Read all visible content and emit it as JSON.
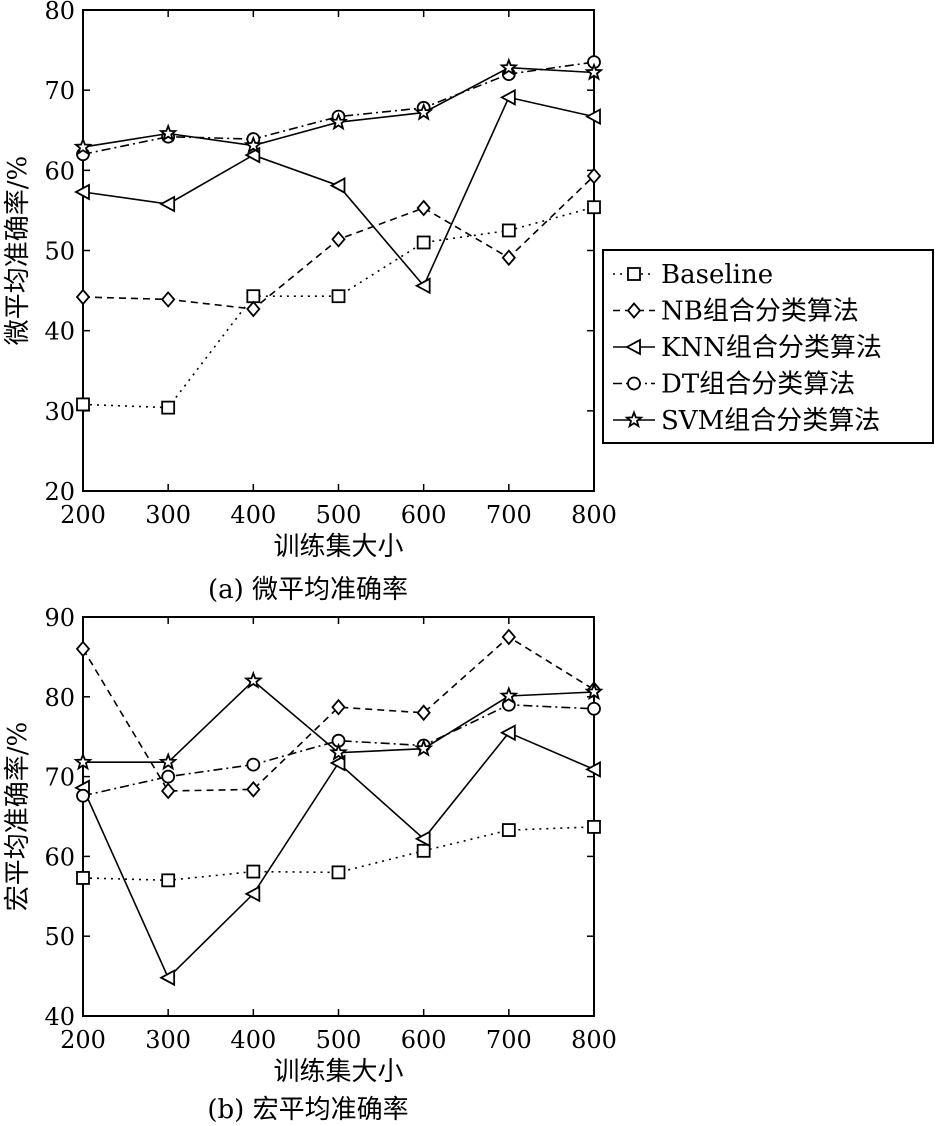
{
  "figure": {
    "legend": {
      "entries": [
        {
          "label": "Baseline",
          "marker": "square-icon",
          "dash": "dotted"
        },
        {
          "label": "NB组合分类算法",
          "marker": "diamond-icon",
          "dash": "dashed"
        },
        {
          "label": "KNN组合分类算法",
          "marker": "left-triangle-icon",
          "dash": "solid"
        },
        {
          "label": "DT组合分类算法",
          "marker": "circle-icon",
          "dash": "dashdot"
        },
        {
          "label": "SVM组合分类算法",
          "marker": "star-icon",
          "dash": "solid"
        }
      ],
      "placement": "right, between the two panels"
    },
    "line_color": "#000000",
    "background": "#ffffff"
  },
  "chart_data": [
    {
      "type": "line",
      "caption": "(a) 微平均准确率",
      "xlabel": "训练集大小",
      "ylabel": "微平均准确率/%",
      "x": [
        200,
        300,
        400,
        500,
        600,
        700,
        800
      ],
      "xlim": [
        200,
        800
      ],
      "ylim": [
        20,
        80
      ],
      "xticks": [
        "200",
        "300",
        "400",
        "500",
        "600",
        "700",
        "800"
      ],
      "yticks": [
        "20",
        "30",
        "40",
        "50",
        "60",
        "70",
        "80"
      ],
      "grid": false,
      "series": [
        {
          "name": "Baseline",
          "values": [
            30.8,
            30.4,
            44.3,
            44.3,
            51.0,
            52.5,
            55.4
          ]
        },
        {
          "name": "NB组合分类算法",
          "values": [
            44.2,
            43.9,
            42.7,
            51.4,
            55.3,
            49.1,
            59.3
          ]
        },
        {
          "name": "KNN组合分类算法",
          "values": [
            57.3,
            55.8,
            61.9,
            58.1,
            45.6,
            69.1,
            66.7
          ]
        },
        {
          "name": "DT组合分类算法",
          "values": [
            62.0,
            64.2,
            63.9,
            66.7,
            67.8,
            72.0,
            73.5
          ]
        },
        {
          "name": "SVM组合分类算法",
          "values": [
            62.9,
            64.6,
            63.1,
            66.0,
            67.2,
            72.8,
            72.2
          ]
        }
      ]
    },
    {
      "type": "line",
      "caption": "(b) 宏平均准确率",
      "xlabel": "训练集大小",
      "ylabel": "宏平均准确率/%",
      "x": [
        200,
        300,
        400,
        500,
        600,
        700,
        800
      ],
      "xlim": [
        200,
        800
      ],
      "ylim": [
        40,
        90
      ],
      "xticks": [
        "200",
        "300",
        "400",
        "500",
        "600",
        "700",
        "800"
      ],
      "yticks": [
        "40",
        "50",
        "60",
        "70",
        "80",
        "90"
      ],
      "grid": false,
      "series": [
        {
          "name": "Baseline",
          "values": [
            57.3,
            57.0,
            58.1,
            58.0,
            60.7,
            63.3,
            63.7
          ]
        },
        {
          "name": "NB组合分类算法",
          "values": [
            86.0,
            68.2,
            68.4,
            78.7,
            78.0,
            87.5,
            80.9
          ]
        },
        {
          "name": "KNN组合分类算法",
          "values": [
            68.6,
            44.8,
            55.3,
            71.7,
            62.2,
            75.5,
            70.9
          ]
        },
        {
          "name": "DT组合分类算法",
          "values": [
            67.6,
            70.0,
            71.5,
            74.5,
            73.9,
            79.0,
            78.5
          ]
        },
        {
          "name": "SVM组合分类算法",
          "values": [
            71.8,
            71.8,
            82.0,
            73.0,
            73.5,
            80.1,
            80.6
          ]
        }
      ]
    }
  ]
}
